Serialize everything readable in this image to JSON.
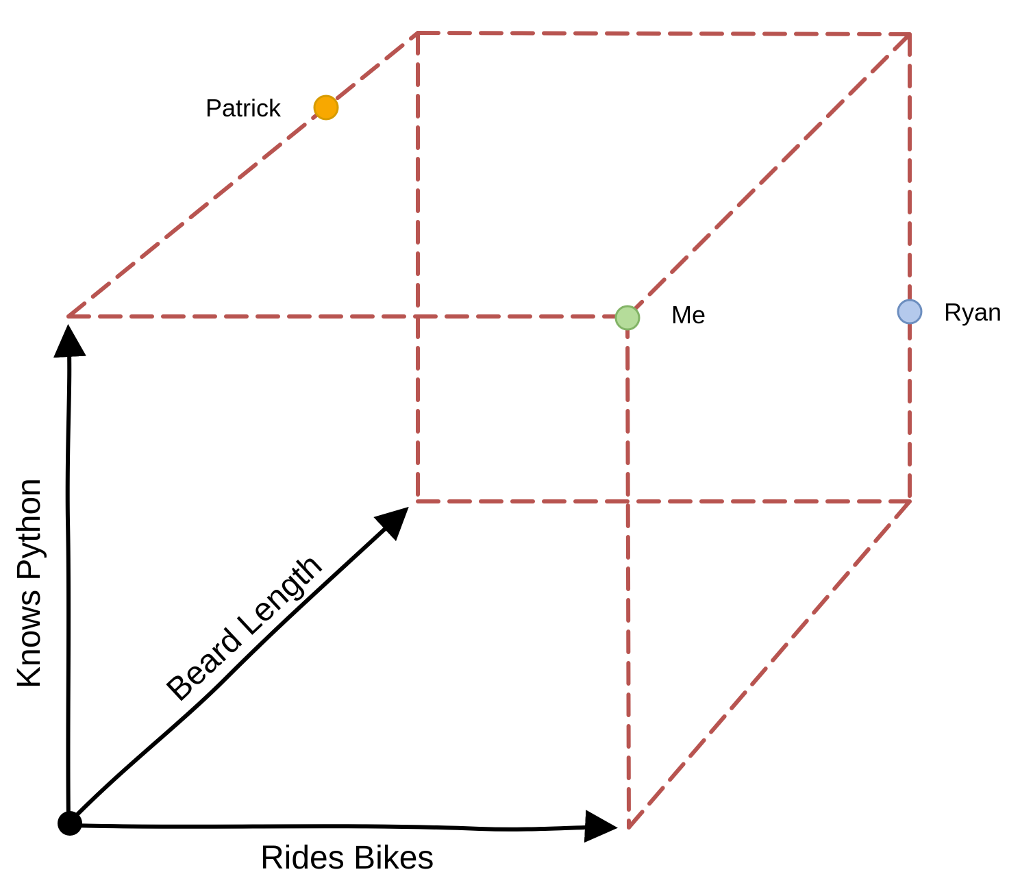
{
  "axes": {
    "x_label": "Rides Bikes",
    "y_label": "Knows Python",
    "z_label": "Beard Length"
  },
  "points": [
    {
      "name": "Patrick",
      "color": "#f8a800",
      "stroke": "#d79b00"
    },
    {
      "name": "Me",
      "color": "#b5dc9a",
      "stroke": "#82b366"
    },
    {
      "name": "Ryan",
      "color": "#b4c9ec",
      "stroke": "#6c8ebf"
    }
  ],
  "colors": {
    "edge": "#b85450",
    "axis": "#000000",
    "origin": "#000000"
  }
}
